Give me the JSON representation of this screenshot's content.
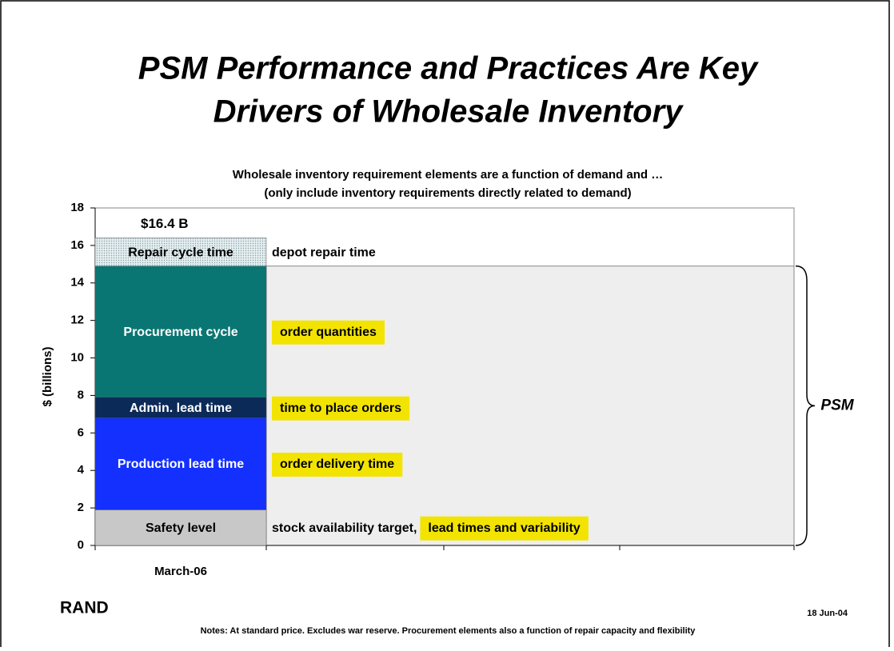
{
  "title": [
    "PSM Performance and Practices Are Key",
    "Drivers of Wholesale Inventory"
  ],
  "footer": {
    "logo": "RAND",
    "date": "18 Jun-04",
    "notes": "Notes:  At standard price.  Excludes war reserve.  Procurement elements also a function of repair capacity and flexibility"
  },
  "chart_data": {
    "type": "bar",
    "stacked": true,
    "subtitle": [
      "Wholesale inventory requirement elements are a function of demand and …",
      "(only include inventory requirements directly related to demand)"
    ],
    "y_label": "$ (billions)",
    "categories": [
      "March-06"
    ],
    "total_label": "$16.4 B",
    "bracket_label": "PSM",
    "series": [
      {
        "name": "Safety level",
        "color": "#c8c8c8",
        "label_color": "#000000",
        "values": [
          1.9
        ],
        "annotations": [
          {
            "text": "stock availability target,",
            "highlight": false
          },
          {
            "text": "lead times and variability",
            "highlight": true
          }
        ]
      },
      {
        "name": "Production lead time",
        "color": "#1430ff",
        "label_color": "#ffffff",
        "values": [
          4.9
        ],
        "annotations": [
          {
            "text": "order delivery time",
            "highlight": true
          }
        ]
      },
      {
        "name": "Admin. lead time",
        "color": "#0b2a58",
        "label_color": "#ffffff",
        "values": [
          1.1
        ],
        "annotations": [
          {
            "text": "time to place orders",
            "highlight": true
          }
        ]
      },
      {
        "name": "Procurement cycle",
        "color": "#0a7673",
        "label_color": "#ffffff",
        "values": [
          7.0
        ],
        "annotations": [
          {
            "text": "order quantities",
            "highlight": true
          }
        ]
      },
      {
        "name": "Repair cycle time",
        "color": "#c9dce1",
        "label_color": "#000000",
        "values": [
          1.5
        ],
        "annotations": [
          {
            "text": "depot repair time",
            "highlight": false
          }
        ]
      }
    ],
    "highlight_color": "#f2e400",
    "ylim": [
      0,
      18
    ],
    "yticks": [
      0,
      2,
      4,
      6,
      8,
      10,
      12,
      14,
      16,
      18
    ]
  }
}
